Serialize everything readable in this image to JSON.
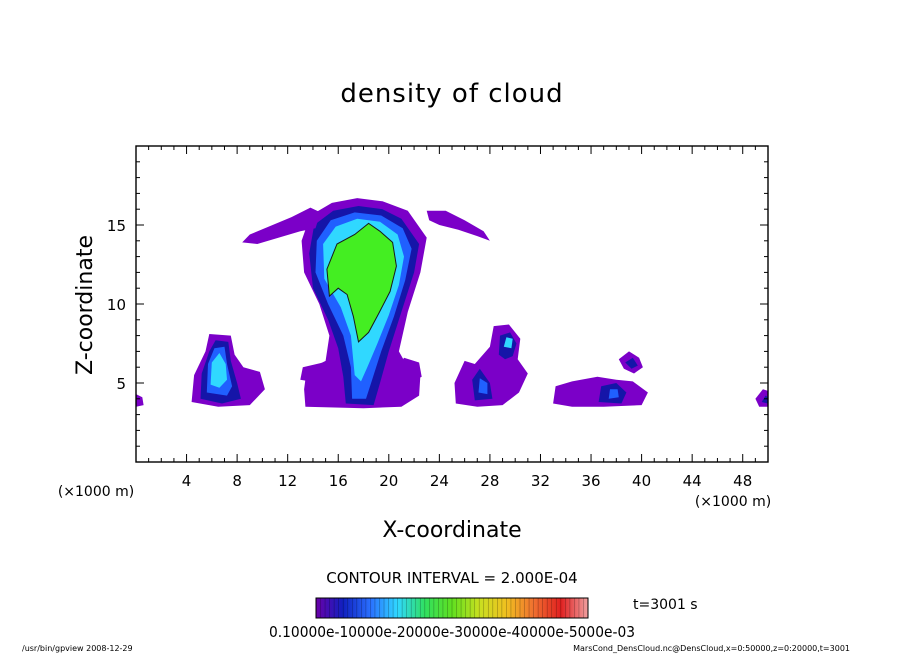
{
  "chart_data": {
    "type": "heatmap",
    "title": "density of cloud",
    "xlabel": "X-coordinate",
    "ylabel": "Z-coordinate",
    "xunit_left": "(×1000 m)",
    "xunit_right": "(×1000 m)",
    "xlim": [
      0,
      50
    ],
    "ylim": [
      0,
      20
    ],
    "xticks": [
      4,
      8,
      12,
      16,
      20,
      24,
      28,
      32,
      36,
      40,
      44,
      48
    ],
    "yticks": [
      5,
      10,
      15
    ],
    "contour_interval_label": "CONTOUR INTERVAL = 2.000E-04",
    "time_label": "t=3001 s",
    "colorbar_text": "0.10000e-10000e-20000e-30000e-40000e-5000e-03",
    "colorbar_range": [
      0.0,
      0.0006
    ],
    "colors": {
      "lvl1": "#7b00c8",
      "lvl2": "#1515a8",
      "lvl3": "#2060ff",
      "lvl4": "#30d8ff",
      "lvl5": "#44ee22",
      "contour_line": "#1a1a1a"
    },
    "features": [
      {
        "name": "central-anvil-cloud",
        "x_range": [
          13,
          23
        ],
        "z_range": [
          3.5,
          16.5
        ],
        "peak": 0.0005
      },
      {
        "name": "left-wing",
        "x_range": [
          8.5,
          14.5
        ],
        "z_range": [
          13.5,
          16
        ],
        "peak": 0.0001
      },
      {
        "name": "right-wing",
        "x_range": [
          23,
          28
        ],
        "z_range": [
          14,
          16
        ],
        "peak": 0.0001
      },
      {
        "name": "cloud-x6",
        "x_range": [
          4.5,
          10
        ],
        "z_range": [
          3.5,
          8
        ],
        "peak": 0.0004
      },
      {
        "name": "cloud-x28",
        "x_range": [
          25,
          31
        ],
        "z_range": [
          3.5,
          8.5
        ],
        "peak": 0.0003
      },
      {
        "name": "cloud-x38",
        "x_range": [
          33,
          40.5
        ],
        "z_range": [
          3.5,
          7
        ],
        "peak": 0.0003
      },
      {
        "name": "edge-x0",
        "x_range": [
          0,
          0.5
        ],
        "z_range": [
          3.5,
          4.2
        ],
        "peak": 0.0002
      },
      {
        "name": "edge-x50",
        "x_range": [
          49,
          50
        ],
        "z_range": [
          3.5,
          4.5
        ],
        "peak": 0.0002
      }
    ]
  },
  "footer": {
    "left": "/usr/bin/gpview  2008-12-29",
    "right": "MarsCond_DensCloud.nc@DensCloud,x=0:50000,z=0:20000,t=3001"
  }
}
